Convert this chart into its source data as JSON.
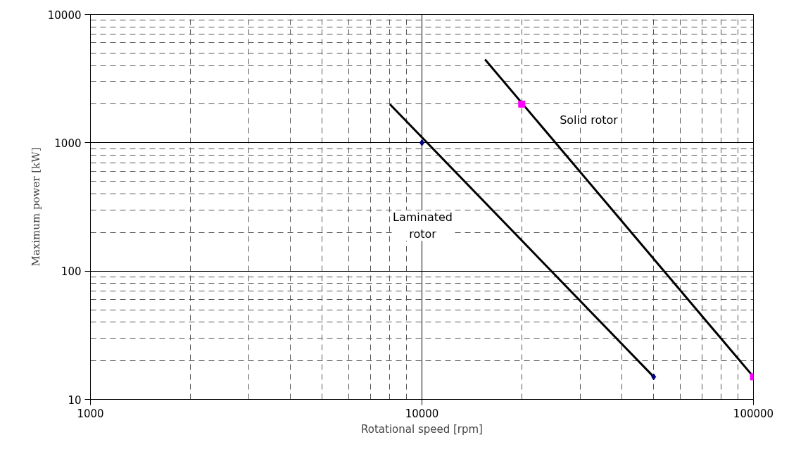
{
  "chart_data": {
    "type": "scatter",
    "xlabel": "Rotational speed [rpm]",
    "ylabel": "Maximum power [kW]",
    "log": "xy",
    "grid": true,
    "xlim": [
      1000,
      100000
    ],
    "xticks": [
      1000,
      10000,
      100000
    ],
    "ylim": [
      10,
      10000
    ],
    "yticks": [
      10,
      100,
      1000,
      10000
    ],
    "series": [
      {
        "type": "line",
        "x": [
          8000,
          50000
        ],
        "values": [
          2000,
          15
        ],
        "color": "#000000"
      },
      {
        "type": "line",
        "x": [
          15500,
          100000
        ],
        "values": [
          4460,
          15
        ],
        "color": "#000000"
      },
      {
        "x": [
          10000,
          50000
        ],
        "values": [
          1000,
          15
        ],
        "color": "#000080",
        "marker": "diamond"
      },
      {
        "x": [
          20000,
          100000
        ],
        "values": [
          2000,
          15
        ],
        "color": "#ff00ff",
        "marker": "square"
      }
    ],
    "annotations": [
      "Solid rotor",
      "Laminated\nrotor"
    ]
  }
}
